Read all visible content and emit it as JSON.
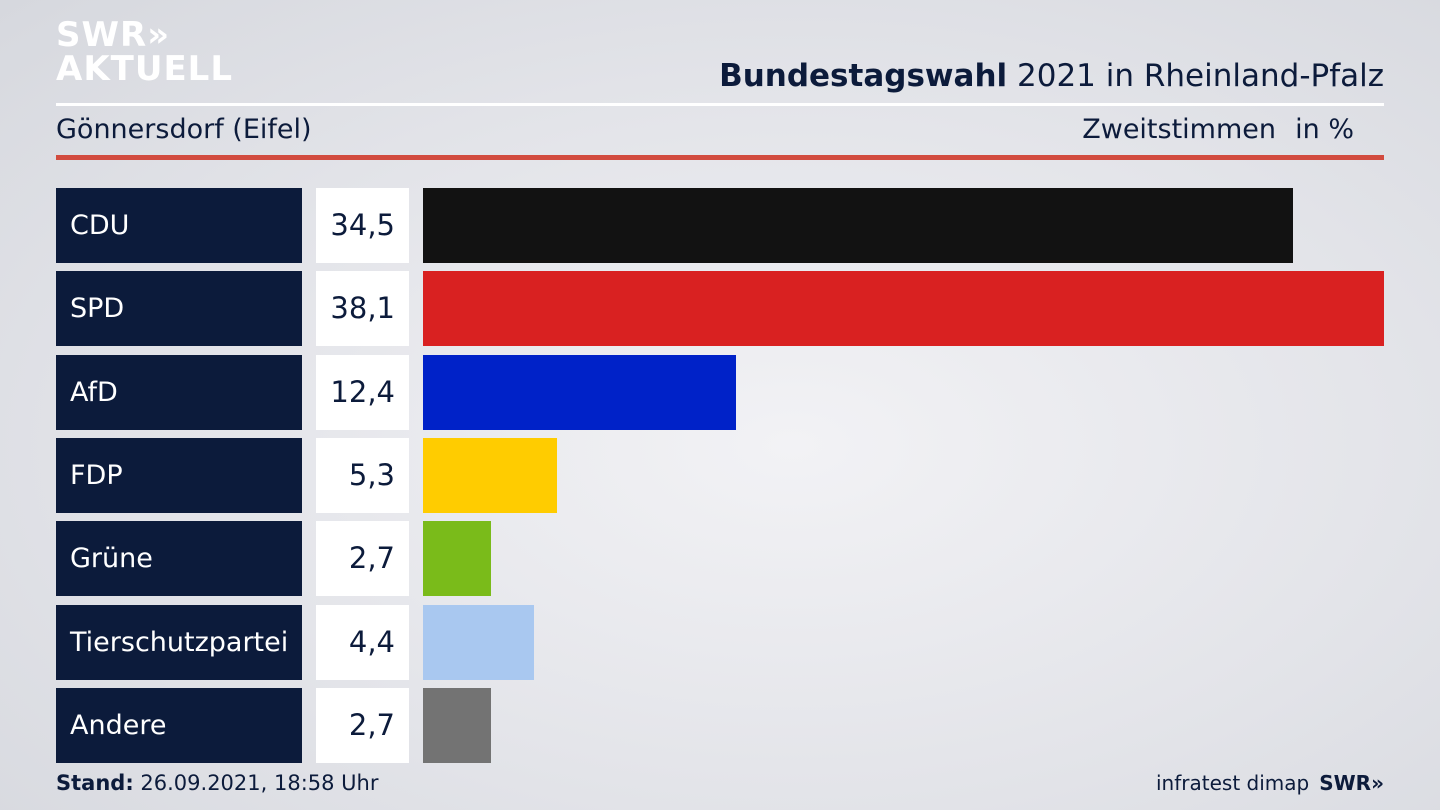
{
  "header": {
    "logo_line1": "SWR»",
    "logo_line2": "AKTUELL",
    "title_bold": "Bundestagswahl",
    "title_rest": " 2021 in Rheinland-Pfalz",
    "place": "Gönnersdorf (Eifel)",
    "metric": "Zweitstimmen",
    "unit": "in %"
  },
  "colors": {
    "navy": "#0c1b3b",
    "accent_rule": "#d24b3f"
  },
  "chart_data": {
    "type": "bar",
    "orientation": "horizontal",
    "categories": [
      "CDU",
      "SPD",
      "AfD",
      "FDP",
      "Grüne",
      "Tierschutzpartei",
      "Andere"
    ],
    "values": [
      34.5,
      38.1,
      12.4,
      5.3,
      2.7,
      4.4,
      2.7
    ],
    "value_labels": [
      "34,5",
      "38,1",
      "12,4",
      "5,3",
      "2,7",
      "4,4",
      "2,7"
    ],
    "colors": [
      "#121212",
      "#d92121",
      "#0022c8",
      "#ffcc00",
      "#7abb1a",
      "#a9c8f0",
      "#737373"
    ],
    "xlim": [
      0,
      38.1
    ]
  },
  "footer": {
    "stand_label": "Stand:",
    "stand_value": " 26.09.2021, 18:58 Uhr",
    "source": "infratest dimap",
    "brand": "SWR»"
  }
}
